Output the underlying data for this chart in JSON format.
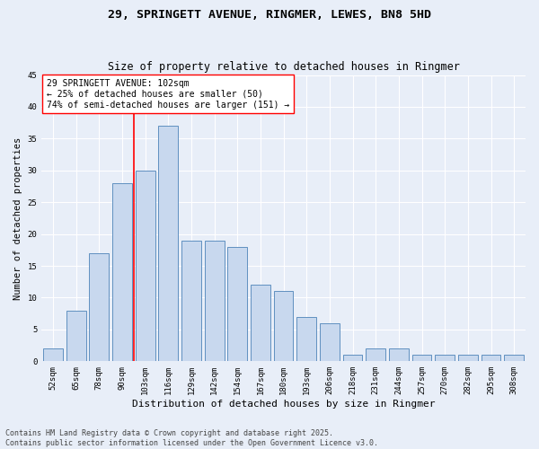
{
  "title": "29, SPRINGETT AVENUE, RINGMER, LEWES, BN8 5HD",
  "subtitle": "Size of property relative to detached houses in Ringmer",
  "xlabel": "Distribution of detached houses by size in Ringmer",
  "ylabel": "Number of detached properties",
  "bar_color": "#c8d8ee",
  "bar_edge_color": "#6090c0",
  "categories": [
    "52sqm",
    "65sqm",
    "78sqm",
    "90sqm",
    "103sqm",
    "116sqm",
    "129sqm",
    "142sqm",
    "154sqm",
    "167sqm",
    "180sqm",
    "193sqm",
    "206sqm",
    "218sqm",
    "231sqm",
    "244sqm",
    "257sqm",
    "270sqm",
    "282sqm",
    "295sqm",
    "308sqm"
  ],
  "values": [
    2,
    8,
    17,
    28,
    30,
    37,
    19,
    19,
    18,
    12,
    11,
    7,
    6,
    1,
    2,
    2,
    1,
    1,
    1,
    1,
    1
  ],
  "vline_index": 4,
  "vline_color": "red",
  "annotation_text": "29 SPRINGETT AVENUE: 102sqm\n← 25% of detached houses are smaller (50)\n74% of semi-detached houses are larger (151) →",
  "annotation_box_color": "white",
  "annotation_box_edge_color": "red",
  "ylim": [
    0,
    45
  ],
  "yticks": [
    0,
    5,
    10,
    15,
    20,
    25,
    30,
    35,
    40,
    45
  ],
  "background_color": "#e8eef8",
  "grid_color": "white",
  "footer": "Contains HM Land Registry data © Crown copyright and database right 2025.\nContains public sector information licensed under the Open Government Licence v3.0.",
  "title_fontsize": 9.5,
  "subtitle_fontsize": 8.5,
  "xlabel_fontsize": 8,
  "ylabel_fontsize": 7.5,
  "tick_fontsize": 6.5,
  "annotation_fontsize": 7,
  "footer_fontsize": 6
}
